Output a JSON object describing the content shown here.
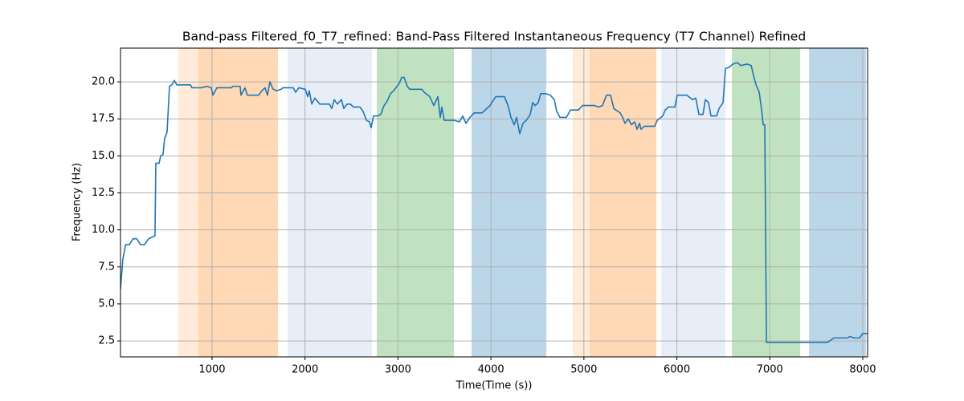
{
  "chart_data": {
    "type": "line",
    "title": "Band-pass Filtered_f0_T7_refined: Band-Pass Filtered Instantaneous Frequency (T7 Channel) Refined",
    "x_label": "Time(Time (s))",
    "y_label": "Frequency (Hz)",
    "xlim": [
      15,
      8052
    ],
    "ylim": [
      1.42,
      22.28
    ],
    "xticks": [
      1000,
      2000,
      3000,
      4000,
      5000,
      6000,
      7000,
      8000
    ],
    "yticks": [
      2.5,
      {
        "value": 5,
        "label": "5.0"
      },
      7.5,
      {
        "value": 10,
        "label": "10.0"
      },
      12.5,
      {
        "value": 15,
        "label": "15.0"
      },
      17.5,
      {
        "value": 20,
        "label": "20.0"
      }
    ],
    "grid": true,
    "spans": [
      {
        "start": 637,
        "end": 853,
        "color": "#ffebd7"
      },
      {
        "start": 853,
        "end": 1709,
        "color": "#ffd8b6"
      },
      {
        "start": 1812,
        "end": 2720,
        "color": "#e7eef8"
      },
      {
        "start": 2772,
        "end": 3602,
        "color": "#c0e2c0"
      },
      {
        "start": 3792,
        "end": 4596,
        "color": "#bcd6e9"
      },
      {
        "start": 4881,
        "end": 5062,
        "color": "#ffebd7"
      },
      {
        "start": 5062,
        "end": 5780,
        "color": "#ffd8b6"
      },
      {
        "start": 5832,
        "end": 6523,
        "color": "#e7eef8"
      },
      {
        "start": 6592,
        "end": 7327,
        "color": "#c0e2c0"
      },
      {
        "start": 7422,
        "end": 8035,
        "color": "#bcd6e9"
      }
    ],
    "x": [
      15,
      40,
      70,
      110,
      150,
      190,
      230,
      274,
      317,
      386,
      395,
      430,
      447,
      473,
      490,
      516,
      542,
      568,
      594,
      620,
      706,
      767,
      784,
      879,
      948,
      991,
      1009,
      1052,
      1207,
      1225,
      1302,
      1311,
      1354,
      1380,
      1501,
      1536,
      1570,
      1596,
      1622,
      1657,
      1700,
      1743,
      1761,
      1873,
      1899,
      1934,
      2003,
      2029,
      2046,
      2072,
      2106,
      2158,
      2262,
      2288,
      2314,
      2348,
      2392,
      2417,
      2452,
      2487,
      2522,
      2591,
      2625,
      2660,
      2694,
      2711,
      2737,
      2780,
      2815,
      2850,
      2884,
      2919,
      2953,
      3014,
      3040,
      3066,
      3100,
      3126,
      3256,
      3282,
      3342,
      3385,
      3429,
      3455,
      3472,
      3498,
      3602,
      3662,
      3697,
      3731,
      3775,
      3818,
      3904,
      3990,
      4051,
      4146,
      4189,
      4215,
      4250,
      4276,
      4310,
      4345,
      4380,
      4423,
      4449,
      4475,
      4509,
      4535,
      4596,
      4639,
      4682,
      4708,
      4743,
      4812,
      4855,
      4941,
      4984,
      5114,
      5157,
      5200,
      5243,
      5287,
      5322,
      5391,
      5417,
      5442,
      5477,
      5511,
      5546,
      5572,
      5598,
      5615,
      5650,
      5762,
      5788,
      5849,
      5875,
      5909,
      5978,
      6004,
      6108,
      6168,
      6203,
      6238,
      6281,
      6307,
      6341,
      6367,
      6428,
      6454,
      6497,
      6523,
      6567,
      6601,
      6653,
      6687,
      6756,
      6800,
      6826,
      6852,
      6886,
      6912,
      6929,
      6946,
      6964,
      7275,
      7361,
      7620,
      7690,
      7836,
      7862,
      7905,
      7966,
      8000,
      8052
    ],
    "series": [
      {
        "color": "#1f77b4",
        "values": [
          6.0,
          8.0,
          9.0,
          9.0,
          9.4,
          9.4,
          9.0,
          9.0,
          9.4,
          9.6,
          14.5,
          14.5,
          15.0,
          15.1,
          16.2,
          16.6,
          19.7,
          19.8,
          20.1,
          19.8,
          19.8,
          19.8,
          19.6,
          19.6,
          19.7,
          19.6,
          19.1,
          19.6,
          19.6,
          19.7,
          19.7,
          19.1,
          19.6,
          19.1,
          19.1,
          19.4,
          19.6,
          19.1,
          20.0,
          19.5,
          19.4,
          19.5,
          19.6,
          19.6,
          19.3,
          19.6,
          19.5,
          19.0,
          19.4,
          18.5,
          18.9,
          18.5,
          18.5,
          18.2,
          18.8,
          18.5,
          18.8,
          18.2,
          18.5,
          18.5,
          18.3,
          18.3,
          18.0,
          17.4,
          17.3,
          16.9,
          17.7,
          17.7,
          17.8,
          18.4,
          18.7,
          19.2,
          19.4,
          19.9,
          20.3,
          20.3,
          19.7,
          19.5,
          19.5,
          19.3,
          19.0,
          18.4,
          19.0,
          17.6,
          18.3,
          17.4,
          17.4,
          17.3,
          17.7,
          17.2,
          17.6,
          17.9,
          17.9,
          18.4,
          19.0,
          19.0,
          18.3,
          17.6,
          17.1,
          17.6,
          16.5,
          17.2,
          17.4,
          17.8,
          18.6,
          18.4,
          18.6,
          19.2,
          19.2,
          19.1,
          18.8,
          18.0,
          17.6,
          17.6,
          18.1,
          18.1,
          18.4,
          18.4,
          18.3,
          18.4,
          19.1,
          19.1,
          18.2,
          17.9,
          17.6,
          17.2,
          17.5,
          17.1,
          17.3,
          16.8,
          17.2,
          16.8,
          17.0,
          17.0,
          17.4,
          17.7,
          18.1,
          18.3,
          18.3,
          19.1,
          19.1,
          18.8,
          18.9,
          17.8,
          17.8,
          18.8,
          18.6,
          17.7,
          17.7,
          18.2,
          18.6,
          20.9,
          21.0,
          21.2,
          21.3,
          21.1,
          21.2,
          21.1,
          20.4,
          19.8,
          19.3,
          18.1,
          17.1,
          17.1,
          2.4,
          2.4,
          2.4,
          2.4,
          2.7,
          2.7,
          2.8,
          2.7,
          2.7,
          3.0,
          3.0
        ]
      }
    ]
  }
}
